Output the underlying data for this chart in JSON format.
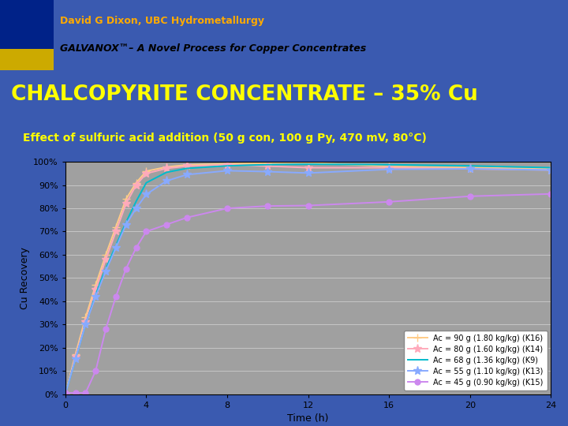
{
  "title_main": "CHALCOPYRITE CONCENTRATE – 35% Cu",
  "subtitle": "Effect of sulfuric acid addition (50 g con, 100 g Py, 470 mV, 80°C)",
  "header_line1": "David G Dixon, UBC Hydrometallurgy",
  "header_line2": "GALVANOX™– A Novel Process for Copper Concentrates",
  "xlabel": "Time (h)",
  "ylabel": "Cu Recovery",
  "xlim": [
    0,
    24
  ],
  "ylim": [
    0,
    1.0
  ],
  "xticks": [
    0,
    4,
    8,
    12,
    16,
    20,
    24
  ],
  "yticks": [
    0.0,
    0.1,
    0.2,
    0.3,
    0.4,
    0.5,
    0.6,
    0.7,
    0.8,
    0.9,
    1.0
  ],
  "fig_bg": "#3a5ab0",
  "header_bg": "#ffffff",
  "plot_bg": "#a0a0a0",
  "title_color": "#ffff00",
  "subtitle_color": "#ffff00",
  "header_text1_color": "#ffaa00",
  "header_text2_color": "#000000",
  "series": [
    {
      "label": "Ac = 90 g (1.80 kg/kg) (K16)",
      "color": "#ffcc88",
      "marker": "+",
      "markersize": 7,
      "x": [
        0,
        0.5,
        1,
        1.5,
        2,
        2.5,
        3,
        3.5,
        4,
        5,
        6,
        8,
        10,
        12,
        16,
        20,
        24
      ],
      "y": [
        0.0,
        0.17,
        0.33,
        0.47,
        0.6,
        0.72,
        0.84,
        0.91,
        0.96,
        0.978,
        0.987,
        0.992,
        0.995,
        0.997,
        0.98,
        0.975,
        0.97
      ]
    },
    {
      "label": "Ac = 80 g (1.60 kg/kg) (K14)",
      "color": "#ffaabb",
      "marker": "*",
      "markersize": 8,
      "x": [
        0,
        0.5,
        1,
        1.5,
        2,
        2.5,
        3,
        3.5,
        4,
        5,
        6,
        8,
        10,
        12,
        16,
        20,
        24
      ],
      "y": [
        0.0,
        0.16,
        0.31,
        0.45,
        0.58,
        0.7,
        0.82,
        0.9,
        0.95,
        0.972,
        0.982,
        0.988,
        0.982,
        0.975,
        0.975,
        0.97,
        0.965
      ]
    },
    {
      "label": "Ac = 68 g (1.36 kg/kg) (K9)",
      "color": "#00bbcc",
      "marker": "None",
      "markersize": 0,
      "x": [
        0,
        0.5,
        1,
        1.5,
        2,
        2.5,
        3,
        3.5,
        4,
        5,
        6,
        8,
        10,
        12,
        16,
        20,
        24
      ],
      "y": [
        0.0,
        0.15,
        0.3,
        0.43,
        0.54,
        0.64,
        0.74,
        0.83,
        0.91,
        0.955,
        0.972,
        0.983,
        0.988,
        0.99,
        0.988,
        0.983,
        0.975
      ]
    },
    {
      "label": "Ac = 55 g (1.10 kg/kg) (K13)",
      "color": "#88aaff",
      "marker": "*",
      "markersize": 8,
      "x": [
        0,
        0.5,
        1,
        1.5,
        2,
        2.5,
        3,
        3.5,
        4,
        5,
        6,
        8,
        10,
        12,
        16,
        20,
        24
      ],
      "y": [
        0.0,
        0.15,
        0.3,
        0.42,
        0.53,
        0.63,
        0.73,
        0.8,
        0.86,
        0.918,
        0.945,
        0.962,
        0.958,
        0.952,
        0.968,
        0.97,
        0.965
      ]
    },
    {
      "label": "Ac = 45 g (0.90 kg/kg) (K15)",
      "color": "#cc88ee",
      "marker": "o",
      "markersize": 5,
      "x": [
        0,
        0.5,
        1,
        1.5,
        2,
        2.5,
        3,
        3.5,
        4,
        5,
        6,
        8,
        10,
        12,
        16,
        20,
        24
      ],
      "y": [
        0.005,
        0.005,
        0.005,
        0.1,
        0.28,
        0.42,
        0.54,
        0.63,
        0.7,
        0.73,
        0.76,
        0.8,
        0.81,
        0.812,
        0.828,
        0.852,
        0.862
      ]
    }
  ]
}
